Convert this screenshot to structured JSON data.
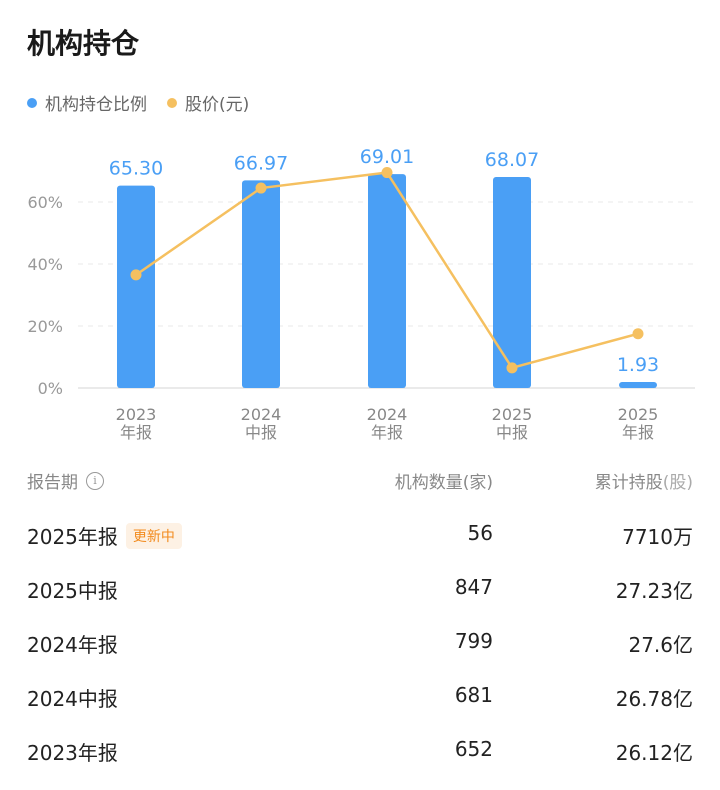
{
  "header": {
    "title": "机构持仓"
  },
  "legend": [
    {
      "label": "机构持仓比例",
      "color": "#4a9ff5"
    },
    {
      "label": "股价(元)",
      "color": "#f5c060"
    }
  ],
  "chart_data": {
    "type": "bar+line",
    "categories": [
      [
        "2023",
        "年报"
      ],
      [
        "2024",
        "中报"
      ],
      [
        "2024",
        "年报"
      ],
      [
        "2025",
        "中报"
      ],
      [
        "2025",
        "年报"
      ]
    ],
    "series": [
      {
        "name": "机构持仓比例",
        "type": "bar",
        "values": [
          65.3,
          66.97,
          69.01,
          68.07,
          1.93
        ],
        "labels": [
          "65.30",
          "66.97",
          "69.01",
          "68.07",
          "1.93"
        ],
        "color": "#4a9ff5"
      },
      {
        "name": "股价(元)",
        "type": "line",
        "values": [
          36.5,
          64.5,
          69.5,
          6.5,
          17.5
        ],
        "color": "#f5c060"
      }
    ],
    "y_ticks": [
      "0%",
      "20%",
      "40%",
      "60%"
    ],
    "ylim": [
      0,
      80
    ],
    "grid": true
  },
  "table": {
    "headers": {
      "period": "报告期",
      "info_icon": "i",
      "count": "机构数量(家)",
      "shares": "累计持股",
      "shares_unit": "(股)"
    },
    "rows": [
      {
        "period": "2025年报",
        "badge": "更新中",
        "count": "56",
        "shares": "7710万"
      },
      {
        "period": "2025中报",
        "badge": "",
        "count": "847",
        "shares": "27.23亿"
      },
      {
        "period": "2024年报",
        "badge": "",
        "count": "799",
        "shares": "27.6亿"
      },
      {
        "period": "2024中报",
        "badge": "",
        "count": "681",
        "shares": "26.78亿"
      },
      {
        "period": "2023年报",
        "badge": "",
        "count": "652",
        "shares": "26.12亿"
      }
    ]
  }
}
